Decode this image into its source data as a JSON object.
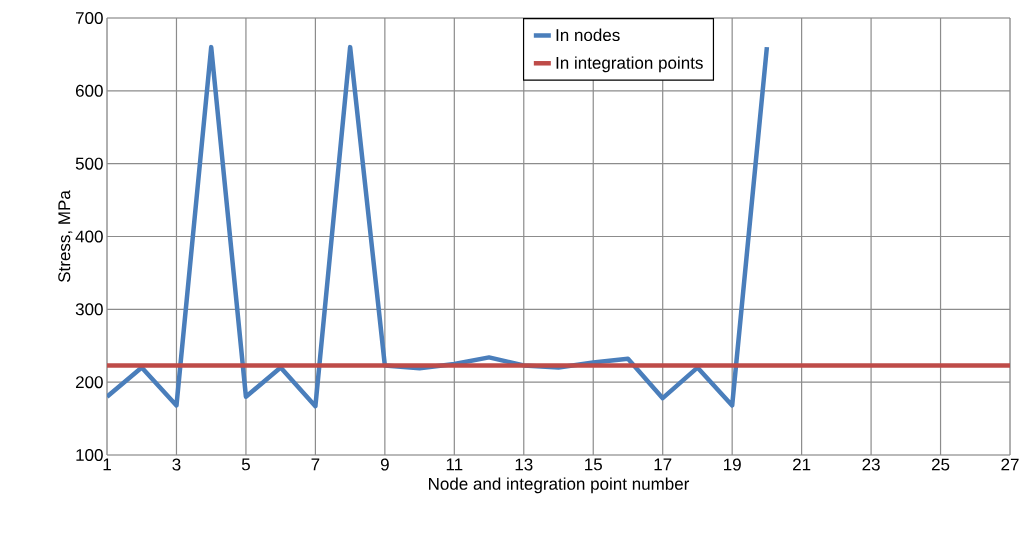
{
  "chart_data": {
    "type": "line",
    "xlabel": "Node and integration point number",
    "ylabel": "Stress, MPa",
    "xlim": [
      1,
      27
    ],
    "xticks": [
      1,
      3,
      5,
      7,
      9,
      11,
      13,
      15,
      17,
      19,
      21,
      23,
      25,
      27
    ],
    "ylim": [
      100,
      700
    ],
    "yticks": [
      100,
      200,
      300,
      400,
      500,
      600,
      700
    ],
    "grid": true,
    "legend": "top",
    "marker": "none",
    "line_style": "solid",
    "series": [
      {
        "name": "In nodes",
        "color": "#4a7ebb",
        "x": [
          1,
          2,
          3,
          4,
          5,
          6,
          7,
          8,
          9,
          10,
          11,
          12,
          13,
          14,
          15,
          16,
          17,
          18,
          19,
          20
        ],
        "values": [
          180,
          220,
          168,
          660,
          180,
          220,
          167,
          660,
          223,
          219,
          225,
          234,
          223,
          220,
          227,
          232,
          178,
          220,
          168,
          660
        ]
      },
      {
        "name": "In integration points",
        "color": "#be4b48",
        "x": [
          1,
          27
        ],
        "values": [
          223,
          223
        ]
      }
    ]
  }
}
